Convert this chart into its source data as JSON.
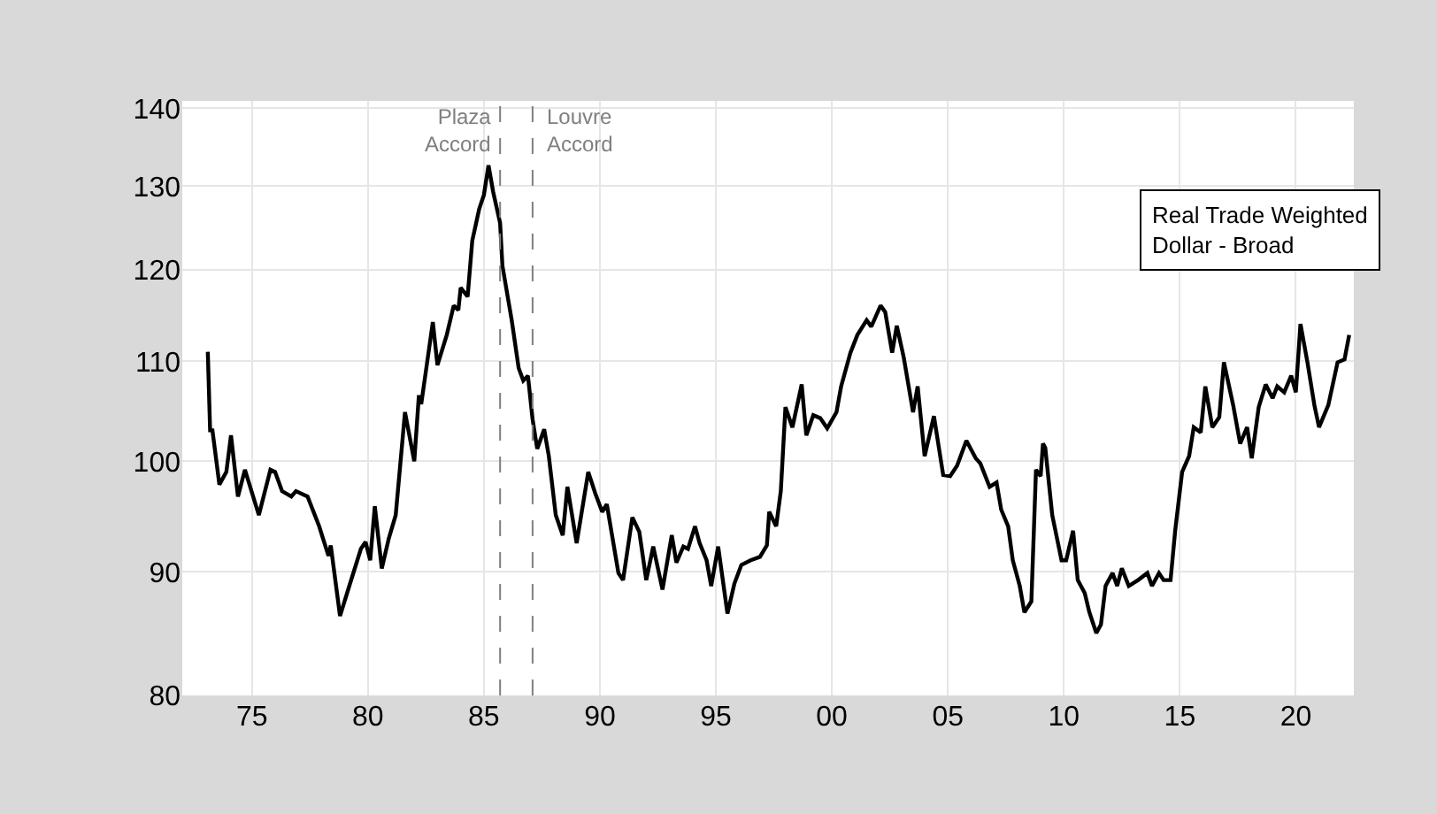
{
  "chart_data": {
    "type": "line",
    "log": true,
    "grid": true,
    "color": "#000000",
    "x": [
      1973.1,
      1973.2,
      1973.3,
      1973.6,
      1973.9,
      1974.1,
      1974.4,
      1974.7,
      1975.3,
      1975.8,
      1976.0,
      1976.3,
      1976.7,
      1976.9,
      1977.4,
      1977.9,
      1978.3,
      1978.4,
      1978.8,
      1979.2,
      1979.7,
      1979.9,
      1980.1,
      1980.3,
      1980.6,
      1980.9,
      1981.2,
      1981.6,
      1982.0,
      1982.2,
      1982.3,
      1982.8,
      1983.0,
      1983.4,
      1983.7,
      1983.9,
      1984.0,
      1984.3,
      1984.5,
      1984.8,
      1985.0,
      1985.2,
      1985.4,
      1985.7,
      1985.8,
      1986.2,
      1986.5,
      1986.7,
      1986.9,
      1987.1,
      1987.3,
      1987.6,
      1987.8,
      1988.1,
      1988.4,
      1988.6,
      1989.0,
      1989.5,
      1989.8,
      1990.1,
      1990.3,
      1990.8,
      1991.0,
      1991.4,
      1991.7,
      1992.0,
      1992.3,
      1992.7,
      1993.1,
      1993.3,
      1993.6,
      1993.8,
      1994.1,
      1994.3,
      1994.6,
      1994.8,
      1995.1,
      1995.5,
      1995.8,
      1996.1,
      1996.5,
      1996.9,
      1997.2,
      1997.3,
      1997.6,
      1997.8,
      1998.0,
      1998.3,
      1998.7,
      1998.9,
      1999.2,
      1999.5,
      1999.8,
      2000.2,
      2000.4,
      2000.8,
      2001.1,
      2001.5,
      2001.7,
      2002.1,
      2002.3,
      2002.6,
      2002.8,
      2003.1,
      2003.5,
      2003.7,
      2004.0,
      2004.4,
      2004.8,
      2005.1,
      2005.4,
      2005.8,
      2006.2,
      2006.4,
      2006.8,
      2007.1,
      2007.3,
      2007.6,
      2007.8,
      2008.1,
      2008.3,
      2008.6,
      2008.8,
      2009.0,
      2009.1,
      2009.2,
      2009.5,
      2009.9,
      2010.1,
      2010.4,
      2010.6,
      2010.9,
      2011.1,
      2011.4,
      2011.6,
      2011.8,
      2012.1,
      2012.3,
      2012.5,
      2012.8,
      2013.2,
      2013.6,
      2013.8,
      2014.1,
      2014.3,
      2014.6,
      2014.8,
      2015.1,
      2015.4,
      2015.6,
      2015.9,
      2016.1,
      2016.4,
      2016.7,
      2016.9,
      2017.3,
      2017.6,
      2017.9,
      2018.1,
      2018.4,
      2018.7,
      2019.0,
      2019.2,
      2019.5,
      2019.8,
      2020.0,
      2020.2,
      2020.5,
      2020.8,
      2021.0,
      2021.4,
      2021.8,
      2022.1,
      2022.3
    ],
    "values": [
      111,
      103,
      103,
      97.8,
      99,
      102.5,
      96.7,
      99.2,
      95,
      99.2,
      99,
      97.2,
      96.7,
      97.2,
      96.7,
      94,
      91.4,
      92.3,
      86.3,
      88.8,
      92,
      92.6,
      91,
      95.8,
      90.3,
      92.9,
      95,
      104.8,
      100,
      106.5,
      105.6,
      114.2,
      109.6,
      112.8,
      116,
      115.5,
      118,
      117,
      123.4,
      127.2,
      128.9,
      132.6,
      129.3,
      125.5,
      120.5,
      114.4,
      109.3,
      108,
      108.5,
      104.1,
      101.2,
      103.1,
      100.5,
      95,
      93.2,
      97.6,
      92.5,
      99,
      97,
      95.3,
      96,
      89.9,
      89.3,
      94.8,
      93.5,
      89.3,
      92.2,
      88.5,
      93.2,
      90.8,
      92.2,
      92,
      94,
      92.5,
      91,
      88.8,
      92.2,
      86.5,
      89,
      90.6,
      91,
      91.3,
      92.3,
      95.3,
      94,
      97.2,
      105.3,
      103.3,
      107.6,
      102.5,
      104.5,
      104.2,
      103.2,
      104.8,
      107.4,
      110.9,
      112.8,
      114.4,
      113.7,
      116,
      115.3,
      110.9,
      113.8,
      110.4,
      104.8,
      107.4,
      100.5,
      104.4,
      98.7,
      98.6,
      99.6,
      102,
      100.3,
      99.8,
      97.6,
      98,
      95.5,
      94,
      91,
      88.8,
      86.6,
      87.5,
      99.2,
      98.6,
      101.7,
      101.3,
      95,
      91,
      91,
      93.6,
      89.3,
      88.2,
      86.6,
      84.9,
      85.6,
      88.8,
      89.9,
      88.8,
      90.3,
      88.8,
      89.3,
      89.9,
      88.8,
      89.9,
      89.3,
      89.3,
      93.6,
      99,
      100.5,
      103.3,
      102.8,
      107.4,
      103.3,
      104.3,
      109.9,
      105.5,
      101.7,
      103.3,
      100.3,
      105.3,
      107.6,
      106.2,
      107.4,
      106.8,
      108.5,
      106.8,
      114,
      109.9,
      105.5,
      103.3,
      105.5,
      109.9,
      110.2,
      112.8
    ],
    "xlim": [
      1972,
      2022.5
    ],
    "ylim": [
      80,
      141
    ],
    "xticks": [
      {
        "value": 1975,
        "label": "75"
      },
      {
        "value": 1980,
        "label": "80"
      },
      {
        "value": 1985,
        "label": "85"
      },
      {
        "value": 1990,
        "label": "90"
      },
      {
        "value": 1995,
        "label": "95"
      },
      {
        "value": 2000,
        "label": "00"
      },
      {
        "value": 2005,
        "label": "05"
      },
      {
        "value": 2010,
        "label": "10"
      },
      {
        "value": 2015,
        "label": "15"
      },
      {
        "value": 2020,
        "label": "20"
      }
    ],
    "yticks": [
      80,
      90,
      100,
      110,
      120,
      130,
      140
    ],
    "ref_lines": [
      {
        "axis": "x",
        "value": 1985.7,
        "label": "Plaza\nAccord",
        "color": "#7f7f7f",
        "line_style": "dashed"
      },
      {
        "axis": "x",
        "value": 1987.1,
        "label": "Louvre\nAccord",
        "color": "#7f7f7f",
        "line_style": "dashed"
      }
    ],
    "annotations": [
      "Real Trade Weighted\nDollar - Broad"
    ]
  }
}
